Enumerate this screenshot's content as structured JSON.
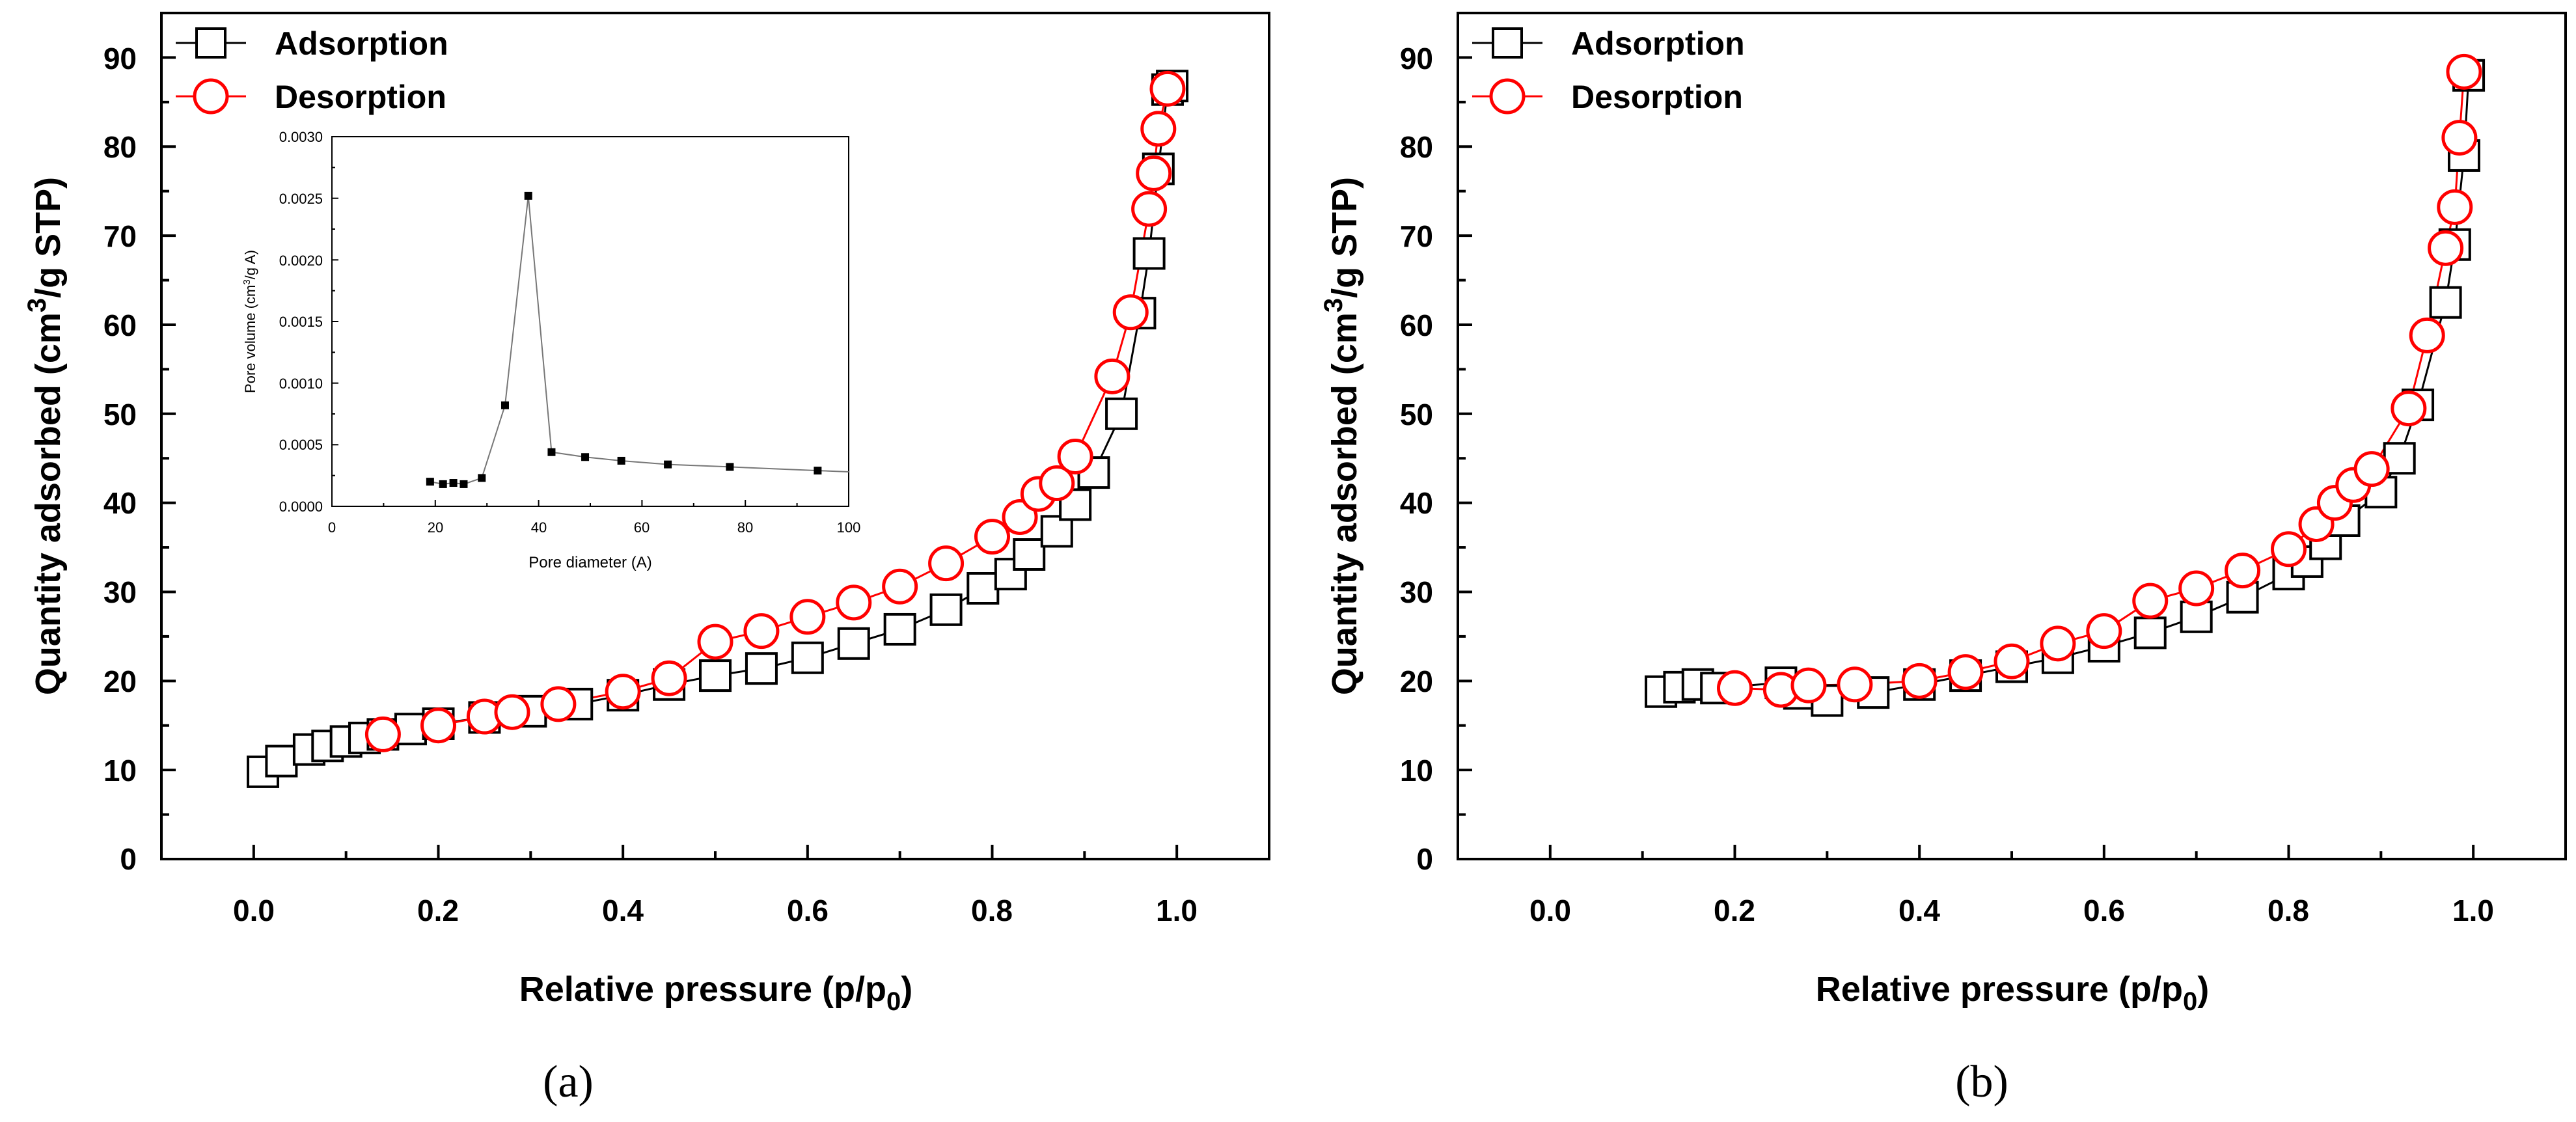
{
  "chart_data": [
    {
      "panel": "(a)",
      "type": "scatter",
      "xlabel": "Relative pressure (p/p",
      "xlabel_sub": "0",
      "ylabel": "Quantity adsorbed (cm",
      "ylabel_sup": "3",
      "ylabel_tail": "/g STP)",
      "xlim": [
        -0.1,
        1.1
      ],
      "ylim": [
        0,
        95
      ],
      "xticks": [
        "0.0",
        "0.2",
        "0.4",
        "0.6",
        "0.8",
        "1.0"
      ],
      "yticks": [
        "0",
        "10",
        "20",
        "30",
        "40",
        "50",
        "60",
        "70",
        "80",
        "90"
      ],
      "legend": [
        "Adsorption",
        "Desorption"
      ],
      "series": [
        {
          "name": "Adsorption",
          "marker": "square",
          "color": "#000000",
          "x": [
            0.01,
            0.03,
            0.06,
            0.08,
            0.1,
            0.12,
            0.14,
            0.17,
            0.2,
            0.25,
            0.3,
            0.35,
            0.4,
            0.45,
            0.5,
            0.55,
            0.6,
            0.65,
            0.7,
            0.75,
            0.79,
            0.82,
            0.84,
            0.87,
            0.89,
            0.91,
            0.94,
            0.96,
            0.97,
            0.98,
            0.99,
            0.995
          ],
          "y": [
            9.8,
            11.0,
            12.3,
            12.7,
            13.2,
            13.6,
            14.0,
            14.6,
            15.2,
            15.9,
            16.6,
            17.4,
            18.4,
            19.6,
            20.6,
            21.4,
            22.6,
            24.2,
            25.8,
            28.0,
            30.4,
            32.0,
            34.2,
            36.8,
            39.8,
            43.4,
            50.0,
            61.3,
            68.0,
            77.5,
            86.4,
            86.8
          ]
        },
        {
          "name": "Desorption",
          "marker": "circle",
          "color": "#ff0000",
          "x": [
            0.14,
            0.2,
            0.25,
            0.28,
            0.33,
            0.4,
            0.45,
            0.5,
            0.55,
            0.6,
            0.65,
            0.7,
            0.75,
            0.8,
            0.83,
            0.85,
            0.87,
            0.89,
            0.93,
            0.95,
            0.97,
            0.975,
            0.98,
            0.99
          ],
          "y": [
            14.0,
            15.0,
            16.0,
            16.5,
            17.4,
            18.8,
            20.3,
            24.4,
            25.6,
            27.2,
            28.8,
            30.6,
            33.2,
            36.2,
            38.4,
            41.0,
            42.2,
            45.2,
            54.2,
            61.4,
            73.0,
            77.0,
            82.0,
            86.5
          ]
        }
      ],
      "inset": {
        "type": "line",
        "xlabel": "Pore diameter (A)",
        "ylabel": "Pore volume (cm",
        "ylabel_sup": "3",
        "ylabel_tail": "/g A)",
        "xlim": [
          0,
          100
        ],
        "ylim": [
          0,
          0.003
        ],
        "xticks": [
          "0",
          "20",
          "40",
          "60",
          "80",
          "100"
        ],
        "yticks": [
          "0.0000",
          "0.0005",
          "0.0010",
          "0.0015",
          "0.0020",
          "0.0025",
          "0.0030"
        ],
        "x": [
          19,
          21.5,
          23.5,
          25.5,
          29,
          33.5,
          38,
          42.5,
          49,
          56,
          65,
          77,
          94,
          100
        ],
        "y": [
          0.0002,
          0.00018,
          0.00019,
          0.00018,
          0.00023,
          0.00082,
          0.00252,
          0.00044,
          0.0004,
          0.00037,
          0.00034,
          0.00032,
          0.00029,
          0.00028
        ],
        "markers": [
          true,
          true,
          true,
          true,
          true,
          true,
          true,
          true,
          true,
          true,
          true,
          true,
          true,
          false
        ]
      }
    },
    {
      "panel": "(b)",
      "type": "scatter",
      "xlabel": "Relative pressure (p/p",
      "xlabel_sub": "0",
      "ylabel": "Quantity adsorbed (cm",
      "ylabel_sup": "3",
      "ylabel_tail": "/g STP)",
      "xlim": [
        -0.1,
        1.1
      ],
      "ylim": [
        0,
        95
      ],
      "xticks": [
        "0.0",
        "0.2",
        "0.4",
        "0.6",
        "0.8",
        "1.0"
      ],
      "yticks": [
        "0",
        "10",
        "20",
        "30",
        "40",
        "50",
        "60",
        "70",
        "80",
        "90"
      ],
      "legend": [
        "Adsorption",
        "Desorption"
      ],
      "series": [
        {
          "name": "Adsorption",
          "marker": "square",
          "color": "#000000",
          "x": [
            0.12,
            0.14,
            0.16,
            0.18,
            0.25,
            0.27,
            0.3,
            0.35,
            0.4,
            0.45,
            0.5,
            0.55,
            0.6,
            0.65,
            0.7,
            0.75,
            0.8,
            0.82,
            0.84,
            0.86,
            0.9,
            0.92,
            0.94,
            0.97,
            0.98,
            0.99,
            0.995
          ],
          "y": [
            18.8,
            19.3,
            19.6,
            19.2,
            19.8,
            18.6,
            17.8,
            18.7,
            19.6,
            20.6,
            21.6,
            22.6,
            23.9,
            25.4,
            27.2,
            29.4,
            32.0,
            33.4,
            35.4,
            38.0,
            41.2,
            45.0,
            51.0,
            62.5,
            69.0,
            79.0,
            88.0
          ]
        },
        {
          "name": "Desorption",
          "marker": "circle",
          "color": "#ff0000",
          "x": [
            0.2,
            0.25,
            0.28,
            0.33,
            0.4,
            0.45,
            0.5,
            0.55,
            0.6,
            0.65,
            0.7,
            0.75,
            0.8,
            0.83,
            0.85,
            0.87,
            0.89,
            0.93,
            0.95,
            0.97,
            0.98,
            0.985,
            0.99
          ],
          "y": [
            19.2,
            19.0,
            19.5,
            19.6,
            20.0,
            21.0,
            22.2,
            24.2,
            25.6,
            29.0,
            30.4,
            32.4,
            34.8,
            37.6,
            40.0,
            42.0,
            43.8,
            50.6,
            58.8,
            68.6,
            73.2,
            81.0,
            88.4
          ]
        }
      ]
    }
  ],
  "panel_labels": [
    "(a)",
    "(b)"
  ]
}
